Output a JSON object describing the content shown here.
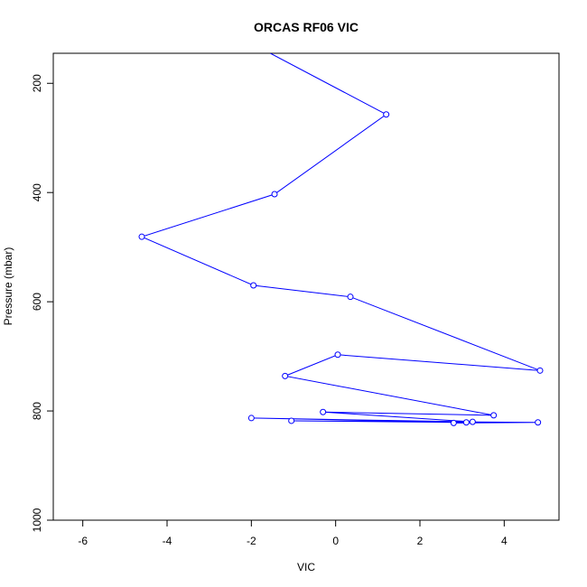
{
  "chart_data": {
    "type": "line",
    "title": "ORCAS RF06 VIC",
    "xlabel": "VIC",
    "ylabel": "Pressure (mbar)",
    "xlim": [
      -6.7,
      5.3
    ],
    "ylim": [
      1000,
      145
    ],
    "y_reversed": true,
    "x_ticks": [
      -6,
      -4,
      -2,
      0,
      2,
      4
    ],
    "y_ticks": [
      200,
      400,
      600,
      800,
      1000
    ],
    "grid": false,
    "legend": "none",
    "series": [
      {
        "color": "#0000ff",
        "marker": "open-circle",
        "points": [
          {
            "x": -1.55,
            "y": 145
          },
          {
            "x": 1.2,
            "y": 257
          },
          {
            "x": -1.45,
            "y": 403
          },
          {
            "x": -4.6,
            "y": 481
          },
          {
            "x": -1.95,
            "y": 570
          },
          {
            "x": 0.35,
            "y": 591
          },
          {
            "x": 4.85,
            "y": 726
          },
          {
            "x": 0.05,
            "y": 697
          },
          {
            "x": -1.2,
            "y": 736
          },
          {
            "x": 3.75,
            "y": 808
          },
          {
            "x": -0.3,
            "y": 802
          },
          {
            "x": 3.25,
            "y": 820
          },
          {
            "x": -2.0,
            "y": 813
          },
          {
            "x": 3.1,
            "y": 821
          },
          {
            "x": -1.05,
            "y": 818
          },
          {
            "x": 4.8,
            "y": 821
          },
          {
            "x": 2.8,
            "y": 822
          }
        ]
      }
    ]
  }
}
